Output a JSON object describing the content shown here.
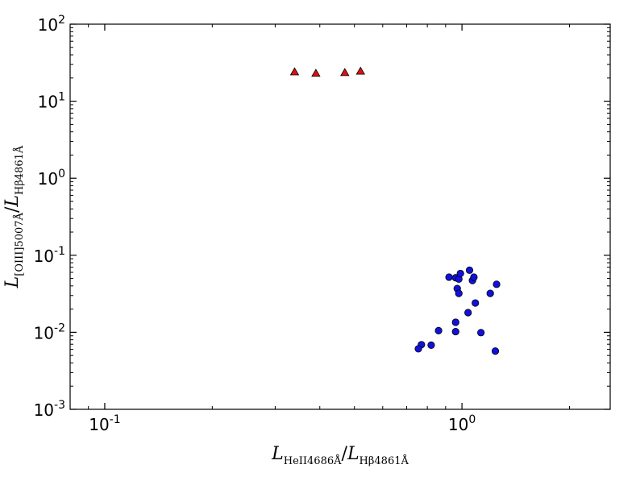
{
  "chart_data": {
    "type": "scatter",
    "xscale": "log",
    "yscale": "log",
    "xlim": [
      0.08,
      2.6
    ],
    "ylim": [
      0.001,
      100
    ],
    "grid": false,
    "xticks": [
      {
        "value": 0.1,
        "base": "10",
        "exp": "-1"
      },
      {
        "value": 1,
        "base": "10",
        "exp": "0"
      }
    ],
    "yticks": [
      {
        "value": 0.001,
        "base": "10",
        "exp": "-3"
      },
      {
        "value": 0.01,
        "base": "10",
        "exp": "-2"
      },
      {
        "value": 0.1,
        "base": "10",
        "exp": "-1"
      },
      {
        "value": 1,
        "base": "10",
        "exp": "0"
      },
      {
        "value": 10,
        "base": "10",
        "exp": "1"
      },
      {
        "value": 100,
        "base": "10",
        "exp": "2"
      }
    ],
    "xlabel": {
      "main": "L",
      "sub1": "HeII4686Å",
      "slash": "/",
      "main2": "L",
      "sub2": "Hβ4861Å"
    },
    "ylabel": {
      "main": "L",
      "sub1": "[OIII]5007Å",
      "slash": "/",
      "main2": "L",
      "sub2": "Hβ4861Å"
    },
    "series": [
      {
        "marker": "triangle",
        "color": "#dd1111",
        "points": [
          {
            "x": 0.34,
            "y": 24
          },
          {
            "x": 0.39,
            "y": 23
          },
          {
            "x": 0.47,
            "y": 23.5
          },
          {
            "x": 0.52,
            "y": 24.5
          }
        ]
      },
      {
        "marker": "circle",
        "color": "#1111dd",
        "points": [
          {
            "x": 0.92,
            "y": 0.052
          },
          {
            "x": 0.96,
            "y": 0.051
          },
          {
            "x": 0.98,
            "y": 0.049
          },
          {
            "x": 0.99,
            "y": 0.058
          },
          {
            "x": 1.05,
            "y": 0.064
          },
          {
            "x": 1.07,
            "y": 0.047
          },
          {
            "x": 1.08,
            "y": 0.052
          },
          {
            "x": 0.97,
            "y": 0.037
          },
          {
            "x": 0.98,
            "y": 0.032
          },
          {
            "x": 1.25,
            "y": 0.042
          },
          {
            "x": 1.2,
            "y": 0.032
          },
          {
            "x": 1.09,
            "y": 0.024
          },
          {
            "x": 1.04,
            "y": 0.018
          },
          {
            "x": 0.96,
            "y": 0.0135
          },
          {
            "x": 0.96,
            "y": 0.0102
          },
          {
            "x": 0.86,
            "y": 0.0105
          },
          {
            "x": 1.13,
            "y": 0.0099
          },
          {
            "x": 0.82,
            "y": 0.0068
          },
          {
            "x": 0.77,
            "y": 0.0069
          },
          {
            "x": 0.755,
            "y": 0.0061
          },
          {
            "x": 1.24,
            "y": 0.0057
          }
        ]
      }
    ]
  }
}
